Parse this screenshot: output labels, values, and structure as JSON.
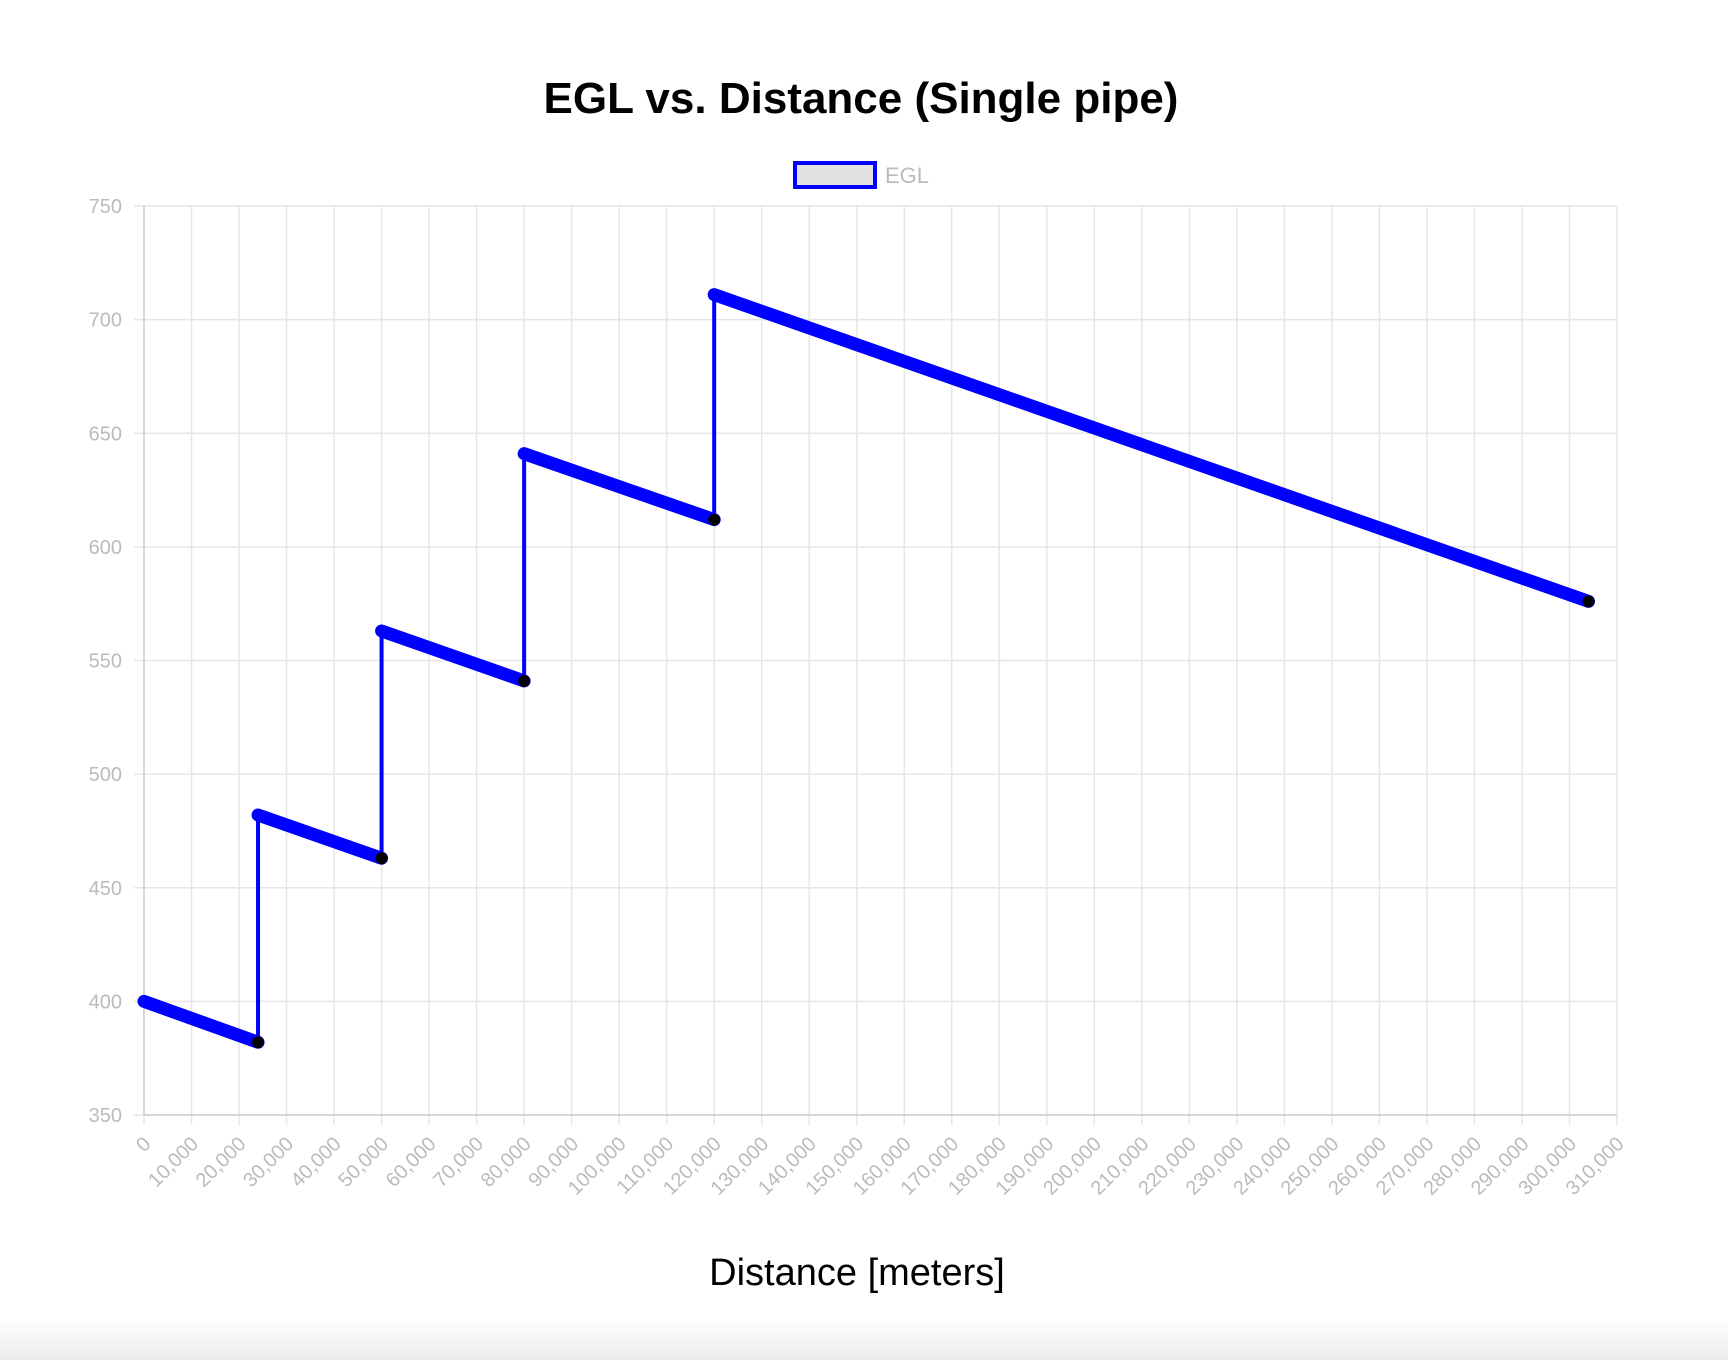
{
  "chart_data": {
    "type": "line",
    "title": "EGL vs. Distance (Single pipe)",
    "xlabel": "Distance [meters]",
    "ylabel": "",
    "legend": {
      "position": "top",
      "entries": [
        "EGL"
      ]
    },
    "grid": true,
    "xlim": [
      0,
      310000
    ],
    "ylim": [
      350,
      750
    ],
    "x_ticks": [
      "0",
      "10,000",
      "20,000",
      "30,000",
      "40,000",
      "50,000",
      "60,000",
      "70,000",
      "80,000",
      "90,000",
      "100,000",
      "110,000",
      "120,000",
      "130,000",
      "140,000",
      "150,000",
      "160,000",
      "170,000",
      "180,000",
      "190,000",
      "200,000",
      "210,000",
      "220,000",
      "230,000",
      "240,000",
      "250,000",
      "260,000",
      "270,000",
      "280,000",
      "290,000",
      "300,000",
      "310,000"
    ],
    "y_ticks": [
      "350",
      "400",
      "450",
      "500",
      "550",
      "600",
      "650",
      "700",
      "750"
    ],
    "series": [
      {
        "name": "EGL",
        "color": "#0000ff",
        "x": [
          0,
          24000,
          24000,
          50000,
          50000,
          80000,
          80000,
          120000,
          120000,
          304000
        ],
        "y": [
          400,
          382,
          482,
          463,
          563,
          541,
          641,
          612,
          711,
          576
        ]
      }
    ]
  }
}
